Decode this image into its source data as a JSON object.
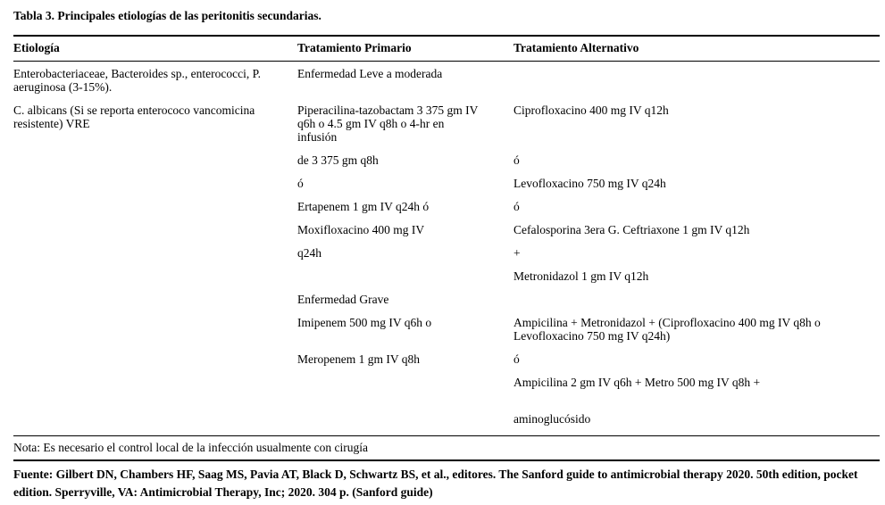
{
  "document": {
    "title": "Tabla 3. Principales etiologías de las peritonitis secundarias.",
    "note": "Nota: Es necesario el control local de la infección usualmente con cirugía",
    "source": "Fuente: Gilbert DN, Chambers HF, Saag MS, Pavia AT, Black D, Schwartz BS, et al., editores. The Sanford guide to antimicrobial therapy 2020. 50th edition, pocket edition. Sperryville, VA: Antimicrobial Therapy, Inc; 2020. 304 p. (Sanford guide)"
  },
  "table": {
    "headers": [
      "Etiología",
      "Tratamiento Primario",
      "Tratamiento Alternativo"
    ],
    "rows": [
      [
        "Enterobacteriaceae, Bacteroides sp., enterococci, P. aeruginosa (3-15%).",
        "Enfermedad Leve a moderada",
        ""
      ],
      [
        "C. albicans (Si se reporta enterococo vancomicina resistente) VRE",
        "Piperacilina-tazobactam 3 375 gm IV q6h o 4.5 gm IV q8h o 4-hr en infusión",
        "Ciprofloxacino 400 mg IV q12h"
      ],
      [
        "",
        "de 3 375 gm q8h",
        "ó"
      ],
      [
        "",
        "ó",
        "Levofloxacino 750 mg IV q24h"
      ],
      [
        "",
        "Ertapenem 1 gm IV q24h ó",
        "ó"
      ],
      [
        "",
        "Moxifloxacino 400 mg IV",
        "Cefalosporina 3era G. Ceftriaxone 1 gm IV q12h"
      ],
      [
        "",
        "q24h",
        "+"
      ],
      [
        "",
        "",
        "Metronidazol 1 gm IV q12h"
      ],
      [
        "",
        "Enfermedad Grave",
        ""
      ],
      [
        "",
        "Imipenem 500 mg IV q6h o",
        "Ampicilina + Metronidazol + (Ciprofloxacino 400 mg IV q8h o Levofloxacino 750 mg IV q24h)"
      ],
      [
        "",
        "Meropenem 1 gm IV q8h",
        "ó"
      ],
      [
        "",
        "",
        "Ampicilina 2 gm IV q6h + Metro 500 mg IV q8h +"
      ],
      [
        "",
        "",
        ""
      ],
      [
        "",
        "",
        "aminoglucósido"
      ]
    ]
  },
  "colors": {
    "text": "#000000",
    "background": "#ffffff",
    "rule": "#000000"
  }
}
